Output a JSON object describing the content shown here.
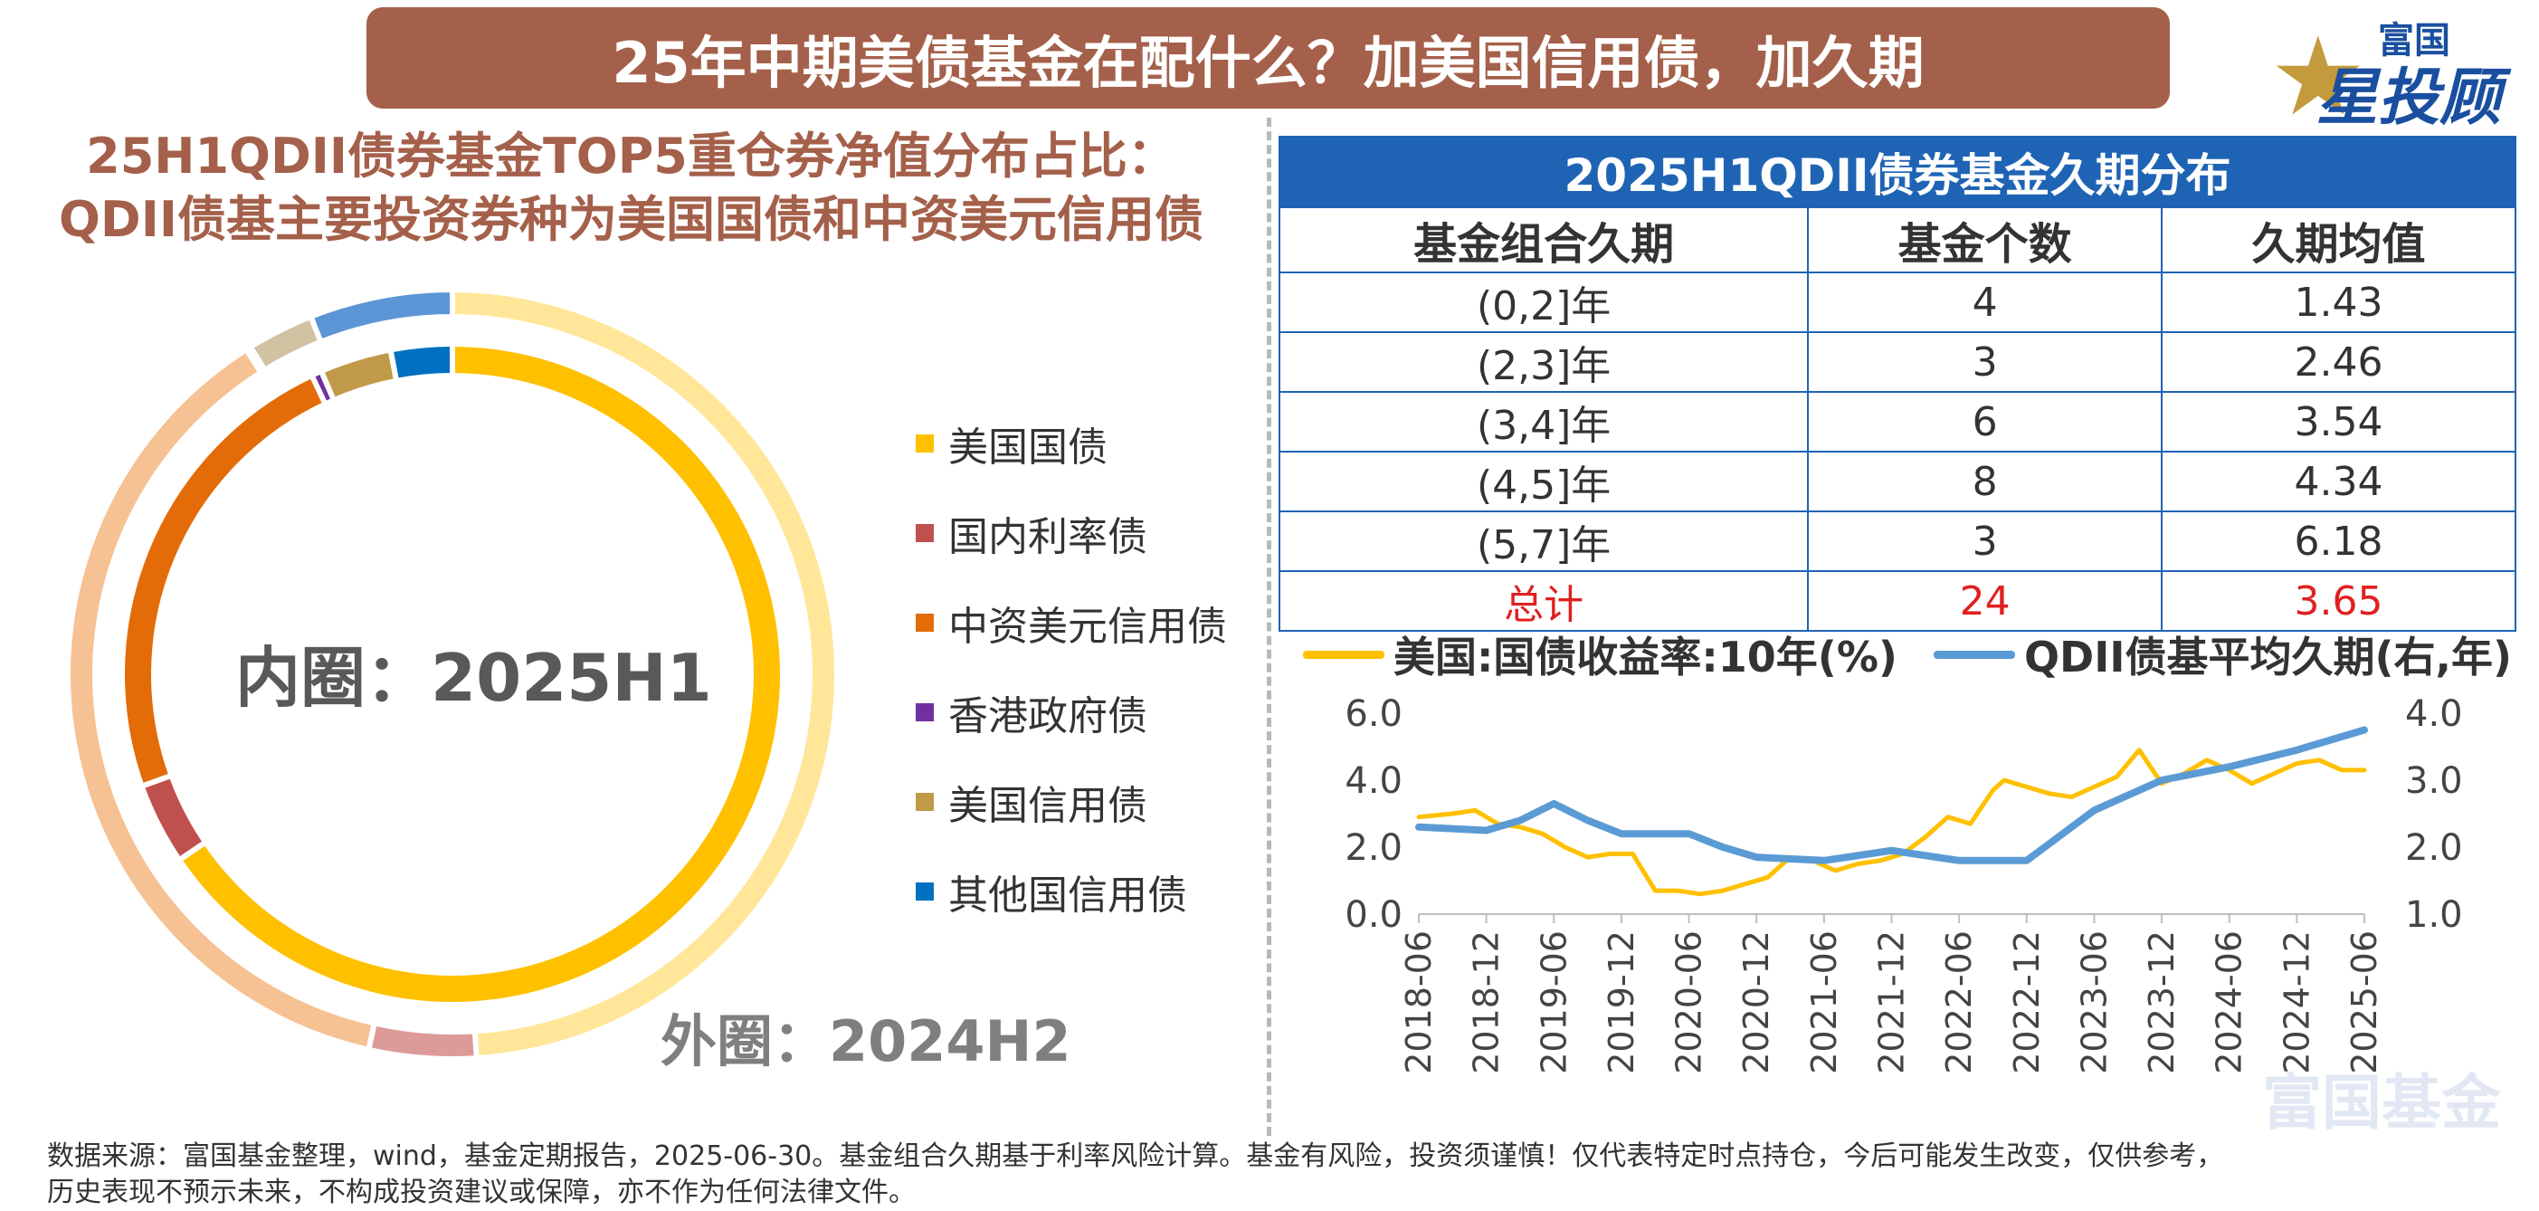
{
  "header": {
    "title": "25年中期美债基金在配什么？加美国信用债，加久期"
  },
  "logo": {
    "top": "富国",
    "main": "星投顾"
  },
  "watermark": "富国基金",
  "left_panel": {
    "title_line1": "25H1QDII债券基金TOP5重仓券净值分布占比：",
    "title_line2": "QDII债基主要投资券种为美国国债和中资美元信用债",
    "inner_label": "内圈：2025H1",
    "outer_label": "外圈：2024H2"
  },
  "right_panel": {
    "table_title": "2025H1QDII债券基金久期分布"
  },
  "chart_data": [
    {
      "type": "pie",
      "title": "",
      "legend_position": "right",
      "categories": [
        "美国国债",
        "国内利率债",
        "中资美元信用债",
        "香港政府债",
        "美国信用债",
        "其他国信用债"
      ],
      "colors": [
        "#ffc000",
        "#c0504d",
        "#e36c09",
        "#7030a0",
        "#c09a48",
        "#0070c0"
      ],
      "light_colors": [
        "#ffe699",
        "#dc9b99",
        "#f6c193",
        "#b48ed3",
        "#d1c3a2",
        "#5b95d5"
      ],
      "series": [
        {
          "name": "外圈：2024H2",
          "values": [
            49.0,
            4.5,
            37.5,
            0.2,
            2.8,
            6.0
          ]
        },
        {
          "name": "内圈：2025H1",
          "values": [
            65.5,
            4.0,
            23.5,
            0.5,
            3.5,
            3.0
          ]
        }
      ]
    },
    {
      "type": "table",
      "title": "2025H1QDII债券基金久期分布",
      "columns": [
        "基金组合久期",
        "基金个数",
        "久期均值"
      ],
      "rows": [
        [
          "(0,2]年",
          "4",
          "1.43"
        ],
        [
          "(2,3]年",
          "3",
          "2.46"
        ],
        [
          "(3,4]年",
          "6",
          "3.54"
        ],
        [
          "(4,5]年",
          "8",
          "4.34"
        ],
        [
          "(5,7]年",
          "3",
          "6.18"
        ]
      ],
      "total": [
        "总计",
        "24",
        "3.65"
      ]
    },
    {
      "type": "line",
      "title": "",
      "legend_position": "top",
      "x_ticks": [
        "2018-06",
        "2018-12",
        "2019-06",
        "2019-12",
        "2020-06",
        "2020-12",
        "2021-06",
        "2021-12",
        "2022-06",
        "2022-12",
        "2023-06",
        "2023-12",
        "2024-06",
        "2024-12",
        "2025-06"
      ],
      "y_left_ticks": [
        "0.0",
        "2.0",
        "4.0",
        "6.0"
      ],
      "y_left_range": [
        0,
        6
      ],
      "y_right_ticks": [
        "1.0",
        "2.0",
        "3.0",
        "4.0"
      ],
      "y_right_range": [
        1,
        4
      ],
      "grid": false,
      "series": [
        {
          "name": "美国:国债收益率:10年(%)",
          "axis": "left",
          "color": "#ffc000",
          "x": [
            "2018-06",
            "2018-09",
            "2018-11",
            "2019-01",
            "2019-03",
            "2019-05",
            "2019-07",
            "2019-09",
            "2019-11",
            "2020-01",
            "2020-03",
            "2020-05",
            "2020-07",
            "2020-09",
            "2020-11",
            "2021-01",
            "2021-03",
            "2021-05",
            "2021-07",
            "2021-09",
            "2021-11",
            "2022-01",
            "2022-03",
            "2022-05",
            "2022-07",
            "2022-09",
            "2022-10",
            "2022-12",
            "2023-02",
            "2023-04",
            "2023-06",
            "2023-08",
            "2023-10",
            "2023-12",
            "2024-02",
            "2024-04",
            "2024-06",
            "2024-08",
            "2024-10",
            "2024-12",
            "2025-02",
            "2025-04",
            "2025-06"
          ],
          "values": [
            2.9,
            3.0,
            3.1,
            2.7,
            2.6,
            2.4,
            2.0,
            1.7,
            1.8,
            1.8,
            0.7,
            0.7,
            0.6,
            0.7,
            0.9,
            1.1,
            1.7,
            1.6,
            1.3,
            1.5,
            1.6,
            1.8,
            2.3,
            2.9,
            2.7,
            3.7,
            4.0,
            3.8,
            3.6,
            3.5,
            3.8,
            4.1,
            4.9,
            3.9,
            4.2,
            4.6,
            4.3,
            3.9,
            4.2,
            4.5,
            4.6,
            4.3,
            4.3
          ]
        },
        {
          "name": "QDII债基平均久期(右,年)",
          "axis": "right",
          "color": "#5b9bd5",
          "x": [
            "2018-06",
            "2018-12",
            "2019-03",
            "2019-06",
            "2019-09",
            "2019-12",
            "2020-06",
            "2020-09",
            "2020-12",
            "2021-06",
            "2021-12",
            "2022-06",
            "2022-12",
            "2023-06",
            "2023-12",
            "2024-06",
            "2024-12",
            "2025-06"
          ],
          "values": [
            2.3,
            2.25,
            2.4,
            2.65,
            2.4,
            2.2,
            2.2,
            2.0,
            1.85,
            1.8,
            1.95,
            1.8,
            1.8,
            2.55,
            3.0,
            3.2,
            3.45,
            3.75
          ]
        }
      ]
    }
  ],
  "footer": {
    "line1": "数据来源：富国基金整理，wind，基金定期报告，2025-06-30。基金组合久期基于利率风险计算。基金有风险，投资须谨慎！仅代表特定时点持仓，今后可能发生改变，仅供参考，",
    "line2": "历史表现不预示未来，不构成投资建议或保障，亦不作为任何法律文件。"
  }
}
